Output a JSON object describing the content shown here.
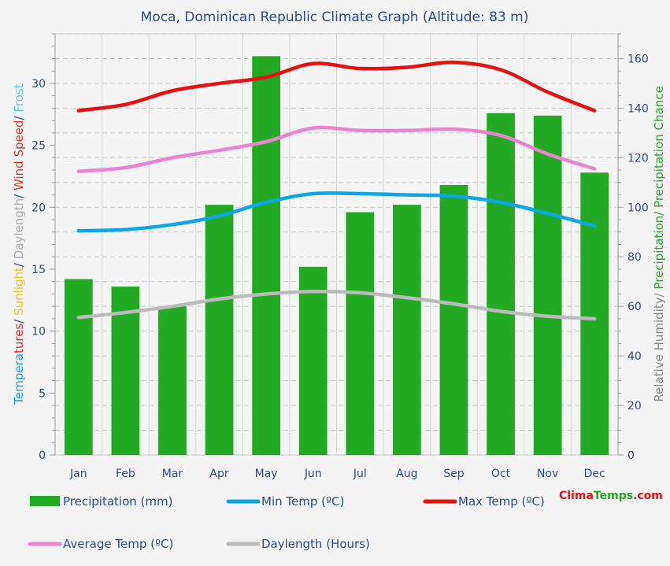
{
  "chart_data": {
    "type": "bar",
    "title": "Moca, Dominican Republic Climate Graph (Altitude: 83 m)",
    "categories": [
      "Jan",
      "Feb",
      "Mar",
      "Apr",
      "May",
      "Jun",
      "Jul",
      "Aug",
      "Sep",
      "Oct",
      "Nov",
      "Dec"
    ],
    "left_axis": {
      "label_parts": [
        {
          "text": "Tempera",
          "color": "#1aa0e0"
        },
        {
          "text": "tures",
          "color": "#e8232a"
        },
        {
          "text": "/ ",
          "color": "#2b4a8a"
        },
        {
          "text": "Sunlight",
          "color": "#f2c417"
        },
        {
          "text": "/ ",
          "color": "#2b4a8a"
        },
        {
          "text": "Daylength",
          "color": "#aaaaaa"
        },
        {
          "text": "/ ",
          "color": "#2b4a8a"
        },
        {
          "text": "Wind Speed",
          "color": "#d9352a"
        },
        {
          "text": "/ ",
          "color": "#2b4a8a"
        },
        {
          "text": "Frost",
          "color": "#5ec8e8"
        }
      ],
      "ylim": [
        0,
        34
      ],
      "ticks": [
        0,
        5,
        10,
        15,
        20,
        25,
        30
      ]
    },
    "right_axis": {
      "label_parts": [
        {
          "text": "Relative Humidity/ ",
          "color": "#888888"
        },
        {
          "text": "Precipitation/ Precipitation Chance",
          "color": "#22aa22"
        }
      ],
      "ylim": [
        0,
        170
      ],
      "ticks": [
        0,
        20,
        40,
        60,
        80,
        100,
        120,
        140,
        160
      ]
    },
    "series": [
      {
        "name": "Precipitation (mm)",
        "kind": "bar",
        "axis": "right",
        "color": "#22aa22",
        "values": [
          71,
          68,
          60,
          101,
          161,
          76,
          98,
          101,
          109,
          138,
          137,
          114
        ]
      },
      {
        "name": "Min Temp (ºC)",
        "kind": "line",
        "axis": "left",
        "color": "#0ea5e9",
        "values": [
          18.1,
          18.2,
          18.6,
          19.3,
          20.4,
          21.1,
          21.1,
          21.0,
          20.9,
          20.4,
          19.5,
          18.5
        ]
      },
      {
        "name": "Max Temp (ºC)",
        "kind": "line",
        "axis": "left",
        "color": "#e81010",
        "values": [
          27.8,
          28.3,
          29.4,
          30.0,
          30.5,
          31.6,
          31.2,
          31.3,
          31.7,
          31.1,
          29.3,
          27.8
        ]
      },
      {
        "name": "Average Temp (ºC)",
        "kind": "line",
        "axis": "left",
        "color": "#e884d0",
        "values": [
          22.9,
          23.2,
          24.0,
          24.6,
          25.3,
          26.4,
          26.2,
          26.2,
          26.3,
          25.8,
          24.3,
          23.1
        ]
      },
      {
        "name": "Daylength (Hours)",
        "kind": "line",
        "axis": "left",
        "color": "#bbbbbb",
        "values": [
          11.1,
          11.5,
          12.0,
          12.6,
          13.0,
          13.2,
          13.1,
          12.7,
          12.2,
          11.6,
          11.2,
          11.0
        ]
      }
    ],
    "grid": true,
    "legend_placement": "bottom"
  },
  "branding": {
    "part1": "Clima",
    "part2": "Temps",
    "part3": ".com"
  }
}
